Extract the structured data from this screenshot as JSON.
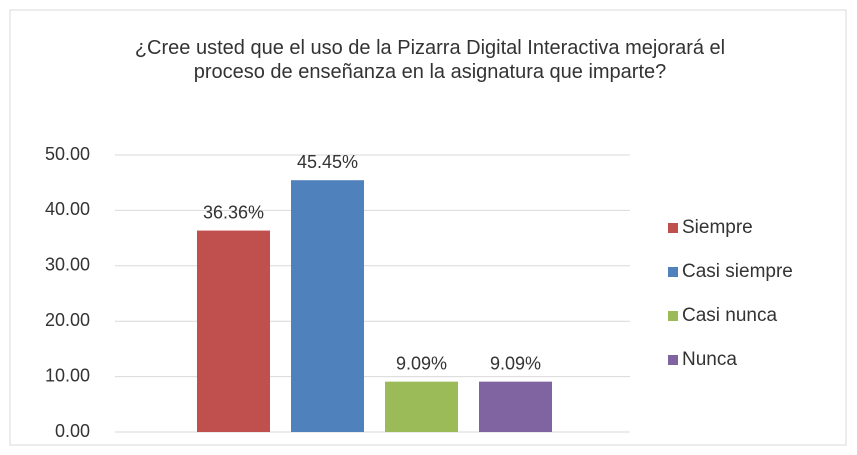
{
  "chart_data": {
    "type": "bar",
    "title": "¿Cree usted que el uso de la Pizarra Digital Interactiva mejorará el proceso de enseñanza en la asignatura que imparte?",
    "categories": [
      null
    ],
    "series": [
      {
        "name": "Siempre",
        "color": "#c0504d",
        "values": [
          36.36
        ],
        "value_labels": [
          "36.36%"
        ]
      },
      {
        "name": "Casi siempre",
        "color": "#4f81bd",
        "values": [
          45.45
        ],
        "value_labels": [
          "45.45%"
        ]
      },
      {
        "name": "Casi nunca",
        "color": "#9bbb59",
        "values": [
          9.09
        ],
        "value_labels": [
          "9.09%"
        ]
      },
      {
        "name": "Nunca",
        "color": "#8064a2",
        "values": [
          9.09
        ],
        "value_labels": [
          "9.09%"
        ]
      }
    ],
    "ylim": [
      0,
      50
    ],
    "yticks": [
      {
        "value": 0,
        "label": "0.00"
      },
      {
        "value": 10,
        "label": "10.00"
      },
      {
        "value": 20,
        "label": "20.00"
      },
      {
        "value": 30,
        "label": "30.00"
      },
      {
        "value": 40,
        "label": "40.00"
      },
      {
        "value": 50,
        "label": "50.00"
      }
    ],
    "grid": true,
    "legend": "right"
  }
}
